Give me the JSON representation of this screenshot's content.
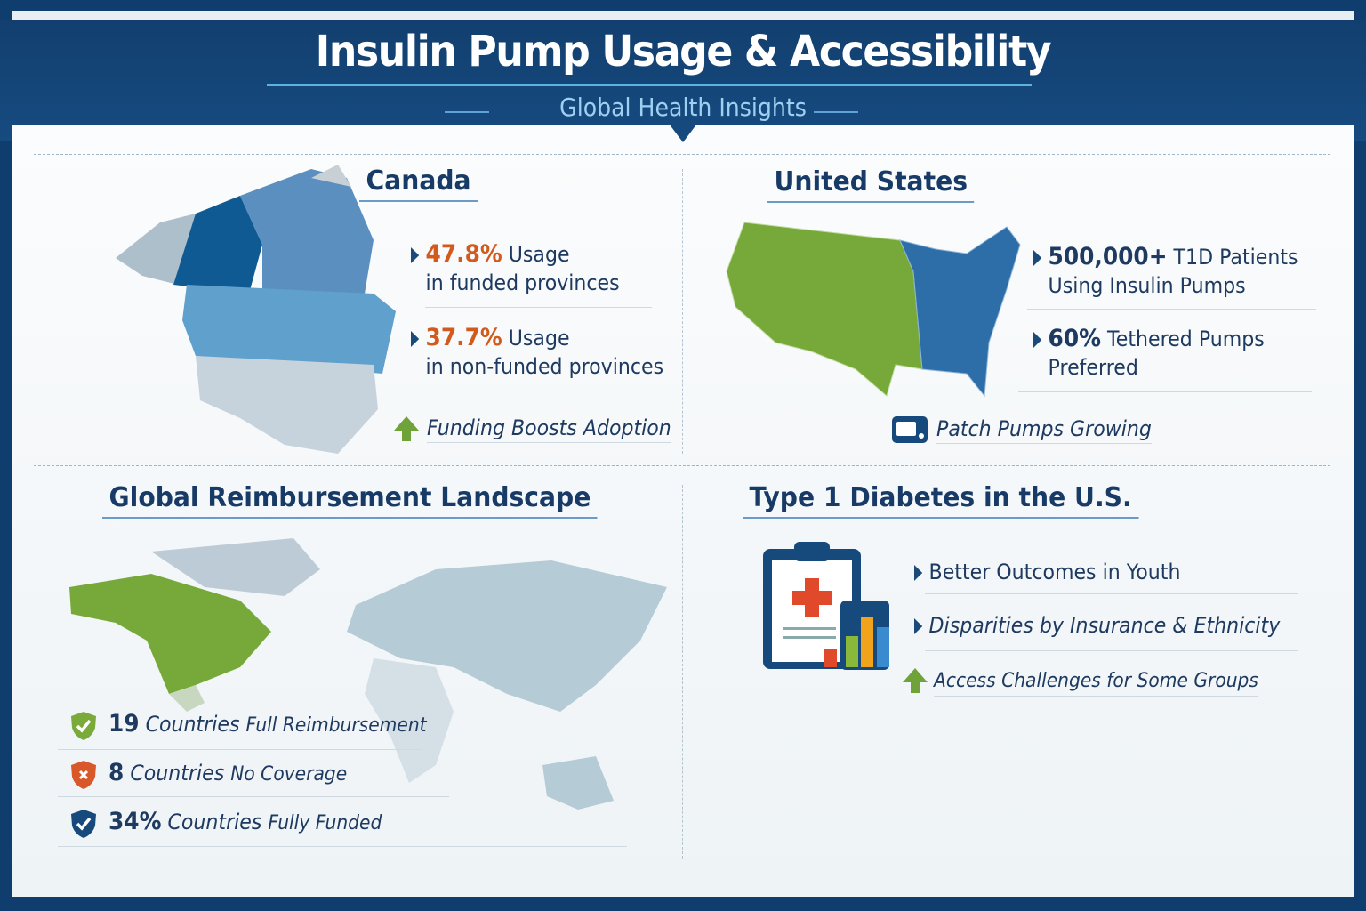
{
  "header": {
    "title": "Insulin Pump Usage & Accessibility",
    "subtitle": "Global Health Insights"
  },
  "canada": {
    "title": "Canada",
    "stat1": {
      "value": "47.8%",
      "label": "Usage",
      "detail": "in funded provinces"
    },
    "stat2": {
      "value": "37.7%",
      "label": "Usage",
      "detail": "in non-funded provinces"
    },
    "note": "Funding Boosts Adoption"
  },
  "us": {
    "title": "United States",
    "stat1": {
      "value": "500,000+",
      "label": "T1D Patients",
      "detail": "Using Insulin Pumps"
    },
    "stat2": {
      "value": "60%",
      "label": "Tethered Pumps",
      "detail": "Preferred"
    },
    "note": "Patch Pumps Growing"
  },
  "global": {
    "title": "Global Reimbursement Landscape",
    "items": [
      {
        "value": "19",
        "label": "Countries",
        "detail": "Full Reimbursement",
        "icon": "shield-check-icon",
        "color": "#7aaa3a"
      },
      {
        "value": "8",
        "label": "Countries",
        "detail": "No Coverage",
        "icon": "shield-x-icon",
        "color": "#d8582a"
      },
      {
        "value": "34%",
        "label": "Countries",
        "detail": "Fully Funded",
        "icon": "shield-check-icon",
        "color": "#174a7c"
      }
    ]
  },
  "t1d": {
    "title": "Type 1 Diabetes in the U.S.",
    "items": [
      "Better Outcomes in Youth",
      "Disparities by Insurance & Ethnicity",
      "Access Challenges for Some Groups"
    ]
  },
  "colors": {
    "navy": "#123f6f",
    "green": "#7aaa3a",
    "orange": "#d25a1d",
    "blue": "#2d6ea8"
  }
}
